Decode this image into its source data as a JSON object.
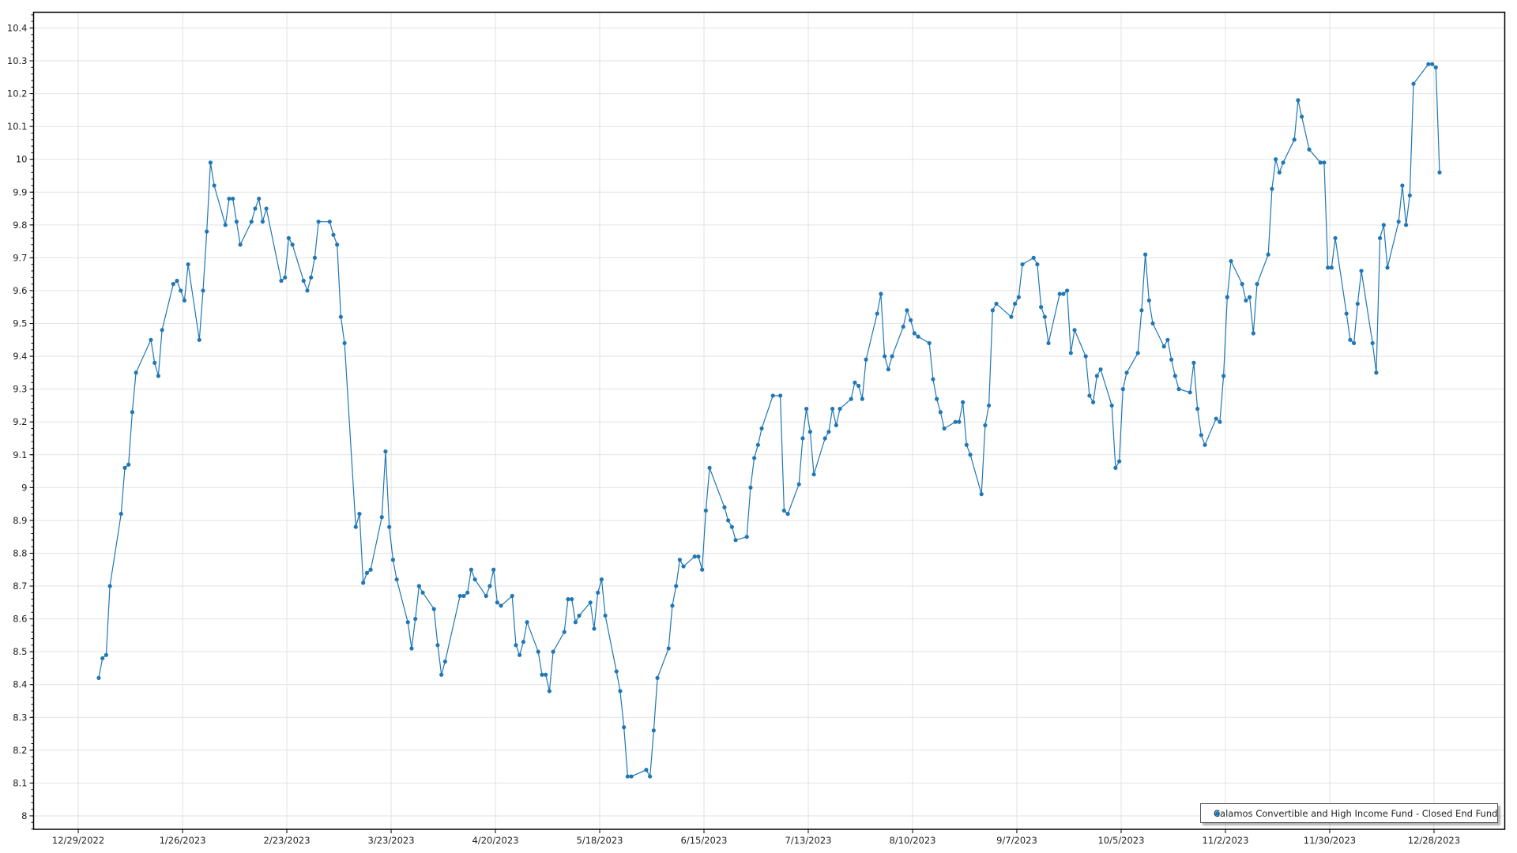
{
  "chart_data": {
    "type": "line",
    "title": "",
    "xlabel": "",
    "ylabel": "",
    "xlim": [
      "2022-12-17",
      "2024-01-16"
    ],
    "ylim": [
      7.959,
      10.448
    ],
    "grid": true,
    "legend_position": "bottom-right",
    "line_color": "#1f77b4",
    "x_ticks": [
      "12/29/2022",
      "1/26/2023",
      "2/23/2023",
      "3/23/2023",
      "4/20/2023",
      "5/18/2023",
      "6/15/2023",
      "7/13/2023",
      "8/10/2023",
      "9/7/2023",
      "10/5/2023",
      "11/2/2023",
      "11/30/2023",
      "12/28/2023"
    ],
    "y_ticks": [
      "8",
      "8.1",
      "8.2",
      "8.3",
      "8.4",
      "8.5",
      "8.6",
      "8.7",
      "8.8",
      "8.9",
      "9",
      "9.1",
      "9.2",
      "9.3",
      "9.4",
      "9.5",
      "9.6",
      "9.7",
      "9.8",
      "9.9",
      "10",
      "10.1",
      "10.2",
      "10.3",
      "10.4"
    ],
    "series": [
      {
        "name": "Calamos Convertible and High Income Fund - Closed End Fund",
        "points": [
          [
            "2023-01-03",
            8.42
          ],
          [
            "2023-01-04",
            8.48
          ],
          [
            "2023-01-05",
            8.49
          ],
          [
            "2023-01-06",
            8.7
          ],
          [
            "2023-01-09",
            8.92
          ],
          [
            "2023-01-10",
            9.06
          ],
          [
            "2023-01-11",
            9.07
          ],
          [
            "2023-01-12",
            9.23
          ],
          [
            "2023-01-13",
            9.35
          ],
          [
            "2023-01-17",
            9.45
          ],
          [
            "2023-01-18",
            9.38
          ],
          [
            "2023-01-19",
            9.34
          ],
          [
            "2023-01-20",
            9.48
          ],
          [
            "2023-01-23",
            9.62
          ],
          [
            "2023-01-24",
            9.63
          ],
          [
            "2023-01-25",
            9.6
          ],
          [
            "2023-01-26",
            9.57
          ],
          [
            "2023-01-27",
            9.68
          ],
          [
            "2023-01-30",
            9.45
          ],
          [
            "2023-01-31",
            9.6
          ],
          [
            "2023-02-01",
            9.78
          ],
          [
            "2023-02-02",
            9.99
          ],
          [
            "2023-02-03",
            9.92
          ],
          [
            "2023-02-06",
            9.8
          ],
          [
            "2023-02-07",
            9.88
          ],
          [
            "2023-02-08",
            9.88
          ],
          [
            "2023-02-09",
            9.81
          ],
          [
            "2023-02-10",
            9.74
          ],
          [
            "2023-02-13",
            9.81
          ],
          [
            "2023-02-14",
            9.85
          ],
          [
            "2023-02-15",
            9.88
          ],
          [
            "2023-02-16",
            9.81
          ],
          [
            "2023-02-17",
            9.85
          ],
          [
            "2023-02-21",
            9.63
          ],
          [
            "2023-02-22",
            9.64
          ],
          [
            "2023-02-23",
            9.76
          ],
          [
            "2023-02-24",
            9.74
          ],
          [
            "2023-02-27",
            9.63
          ],
          [
            "2023-02-28",
            9.6
          ],
          [
            "2023-03-01",
            9.64
          ],
          [
            "2023-03-02",
            9.7
          ],
          [
            "2023-03-03",
            9.81
          ],
          [
            "2023-03-06",
            9.81
          ],
          [
            "2023-03-07",
            9.77
          ],
          [
            "2023-03-08",
            9.74
          ],
          [
            "2023-03-09",
            9.52
          ],
          [
            "2023-03-10",
            9.44
          ],
          [
            "2023-03-13",
            8.88
          ],
          [
            "2023-03-14",
            8.92
          ],
          [
            "2023-03-15",
            8.71
          ],
          [
            "2023-03-16",
            8.74
          ],
          [
            "2023-03-17",
            8.75
          ],
          [
            "2023-03-20",
            8.91
          ],
          [
            "2023-03-21",
            9.11
          ],
          [
            "2023-03-22",
            8.88
          ],
          [
            "2023-03-23",
            8.78
          ],
          [
            "2023-03-24",
            8.72
          ],
          [
            "2023-03-27",
            8.59
          ],
          [
            "2023-03-28",
            8.51
          ],
          [
            "2023-03-29",
            8.6
          ],
          [
            "2023-03-30",
            8.7
          ],
          [
            "2023-03-31",
            8.68
          ],
          [
            "2023-04-03",
            8.63
          ],
          [
            "2023-04-04",
            8.52
          ],
          [
            "2023-04-05",
            8.43
          ],
          [
            "2023-04-06",
            8.47
          ],
          [
            "2023-04-10",
            8.67
          ],
          [
            "2023-04-11",
            8.67
          ],
          [
            "2023-04-12",
            8.68
          ],
          [
            "2023-04-13",
            8.75
          ],
          [
            "2023-04-14",
            8.72
          ],
          [
            "2023-04-17",
            8.67
          ],
          [
            "2023-04-18",
            8.7
          ],
          [
            "2023-04-19",
            8.75
          ],
          [
            "2023-04-20",
            8.65
          ],
          [
            "2023-04-21",
            8.64
          ],
          [
            "2023-04-24",
            8.67
          ],
          [
            "2023-04-25",
            8.52
          ],
          [
            "2023-04-26",
            8.49
          ],
          [
            "2023-04-27",
            8.53
          ],
          [
            "2023-04-28",
            8.59
          ],
          [
            "2023-05-01",
            8.5
          ],
          [
            "2023-05-02",
            8.43
          ],
          [
            "2023-05-03",
            8.43
          ],
          [
            "2023-05-04",
            8.38
          ],
          [
            "2023-05-05",
            8.5
          ],
          [
            "2023-05-08",
            8.56
          ],
          [
            "2023-05-09",
            8.66
          ],
          [
            "2023-05-10",
            8.66
          ],
          [
            "2023-05-11",
            8.59
          ],
          [
            "2023-05-12",
            8.61
          ],
          [
            "2023-05-15",
            8.65
          ],
          [
            "2023-05-16",
            8.57
          ],
          [
            "2023-05-17",
            8.68
          ],
          [
            "2023-05-18",
            8.72
          ],
          [
            "2023-05-19",
            8.61
          ],
          [
            "2023-05-22",
            8.44
          ],
          [
            "2023-05-23",
            8.38
          ],
          [
            "2023-05-24",
            8.27
          ],
          [
            "2023-05-25",
            8.12
          ],
          [
            "2023-05-26",
            8.12
          ],
          [
            "2023-05-30",
            8.14
          ],
          [
            "2023-05-31",
            8.12
          ],
          [
            "2023-06-01",
            8.26
          ],
          [
            "2023-06-02",
            8.42
          ],
          [
            "2023-06-05",
            8.51
          ],
          [
            "2023-06-06",
            8.64
          ],
          [
            "2023-06-07",
            8.7
          ],
          [
            "2023-06-08",
            8.78
          ],
          [
            "2023-06-09",
            8.76
          ],
          [
            "2023-06-12",
            8.79
          ],
          [
            "2023-06-13",
            8.79
          ],
          [
            "2023-06-14",
            8.75
          ],
          [
            "2023-06-15",
            8.93
          ],
          [
            "2023-06-16",
            9.06
          ],
          [
            "2023-06-20",
            8.94
          ],
          [
            "2023-06-21",
            8.9
          ],
          [
            "2023-06-22",
            8.88
          ],
          [
            "2023-06-23",
            8.84
          ],
          [
            "2023-06-26",
            8.85
          ],
          [
            "2023-06-27",
            9.0
          ],
          [
            "2023-06-28",
            9.09
          ],
          [
            "2023-06-29",
            9.13
          ],
          [
            "2023-06-30",
            9.18
          ],
          [
            "2023-07-03",
            9.28
          ],
          [
            "2023-07-05",
            9.28
          ],
          [
            "2023-07-06",
            8.93
          ],
          [
            "2023-07-07",
            8.92
          ],
          [
            "2023-07-10",
            9.01
          ],
          [
            "2023-07-11",
            9.15
          ],
          [
            "2023-07-12",
            9.24
          ],
          [
            "2023-07-13",
            9.17
          ],
          [
            "2023-07-14",
            9.04
          ],
          [
            "2023-07-17",
            9.15
          ],
          [
            "2023-07-18",
            9.17
          ],
          [
            "2023-07-19",
            9.24
          ],
          [
            "2023-07-20",
            9.19
          ],
          [
            "2023-07-21",
            9.24
          ],
          [
            "2023-07-24",
            9.27
          ],
          [
            "2023-07-25",
            9.32
          ],
          [
            "2023-07-26",
            9.31
          ],
          [
            "2023-07-27",
            9.27
          ],
          [
            "2023-07-28",
            9.39
          ],
          [
            "2023-07-31",
            9.53
          ],
          [
            "2023-08-01",
            9.59
          ],
          [
            "2023-08-02",
            9.4
          ],
          [
            "2023-08-03",
            9.36
          ],
          [
            "2023-08-04",
            9.4
          ],
          [
            "2023-08-07",
            9.49
          ],
          [
            "2023-08-08",
            9.54
          ],
          [
            "2023-08-09",
            9.51
          ],
          [
            "2023-08-10",
            9.47
          ],
          [
            "2023-08-11",
            9.46
          ],
          [
            "2023-08-14",
            9.44
          ],
          [
            "2023-08-15",
            9.33
          ],
          [
            "2023-08-16",
            9.27
          ],
          [
            "2023-08-17",
            9.23
          ],
          [
            "2023-08-18",
            9.18
          ],
          [
            "2023-08-21",
            9.2
          ],
          [
            "2023-08-22",
            9.2
          ],
          [
            "2023-08-23",
            9.26
          ],
          [
            "2023-08-24",
            9.13
          ],
          [
            "2023-08-25",
            9.1
          ],
          [
            "2023-08-28",
            8.98
          ],
          [
            "2023-08-29",
            9.19
          ],
          [
            "2023-08-30",
            9.25
          ],
          [
            "2023-08-31",
            9.54
          ],
          [
            "2023-09-01",
            9.56
          ],
          [
            "2023-09-05",
            9.52
          ],
          [
            "2023-09-06",
            9.56
          ],
          [
            "2023-09-07",
            9.58
          ],
          [
            "2023-09-08",
            9.68
          ],
          [
            "2023-09-11",
            9.7
          ],
          [
            "2023-09-12",
            9.68
          ],
          [
            "2023-09-13",
            9.55
          ],
          [
            "2023-09-14",
            9.52
          ],
          [
            "2023-09-15",
            9.44
          ],
          [
            "2023-09-18",
            9.59
          ],
          [
            "2023-09-19",
            9.59
          ],
          [
            "2023-09-20",
            9.6
          ],
          [
            "2023-09-21",
            9.41
          ],
          [
            "2023-09-22",
            9.48
          ],
          [
            "2023-09-25",
            9.4
          ],
          [
            "2023-09-26",
            9.28
          ],
          [
            "2023-09-27",
            9.26
          ],
          [
            "2023-09-28",
            9.34
          ],
          [
            "2023-09-29",
            9.36
          ],
          [
            "2023-10-02",
            9.25
          ],
          [
            "2023-10-03",
            9.06
          ],
          [
            "2023-10-04",
            9.08
          ],
          [
            "2023-10-05",
            9.3
          ],
          [
            "2023-10-06",
            9.35
          ],
          [
            "2023-10-09",
            9.41
          ],
          [
            "2023-10-10",
            9.54
          ],
          [
            "2023-10-11",
            9.71
          ],
          [
            "2023-10-12",
            9.57
          ],
          [
            "2023-10-13",
            9.5
          ],
          [
            "2023-10-16",
            9.43
          ],
          [
            "2023-10-17",
            9.45
          ],
          [
            "2023-10-18",
            9.39
          ],
          [
            "2023-10-19",
            9.34
          ],
          [
            "2023-10-20",
            9.3
          ],
          [
            "2023-10-23",
            9.29
          ],
          [
            "2023-10-24",
            9.38
          ],
          [
            "2023-10-25",
            9.24
          ],
          [
            "2023-10-26",
            9.16
          ],
          [
            "2023-10-27",
            9.13
          ],
          [
            "2023-10-30",
            9.21
          ],
          [
            "2023-10-31",
            9.2
          ],
          [
            "2023-11-01",
            9.34
          ],
          [
            "2023-11-02",
            9.58
          ],
          [
            "2023-11-03",
            9.69
          ],
          [
            "2023-11-06",
            9.62
          ],
          [
            "2023-11-07",
            9.57
          ],
          [
            "2023-11-08",
            9.58
          ],
          [
            "2023-11-09",
            9.47
          ],
          [
            "2023-11-10",
            9.62
          ],
          [
            "2023-11-13",
            9.71
          ],
          [
            "2023-11-14",
            9.91
          ],
          [
            "2023-11-15",
            10.0
          ],
          [
            "2023-11-16",
            9.96
          ],
          [
            "2023-11-17",
            9.99
          ],
          [
            "2023-11-20",
            10.06
          ],
          [
            "2023-11-21",
            10.18
          ],
          [
            "2023-11-22",
            10.13
          ],
          [
            "2023-11-24",
            10.03
          ],
          [
            "2023-11-27",
            9.99
          ],
          [
            "2023-11-28",
            9.99
          ],
          [
            "2023-11-29",
            9.67
          ],
          [
            "2023-11-30",
            9.67
          ],
          [
            "2023-12-01",
            9.76
          ],
          [
            "2023-12-04",
            9.53
          ],
          [
            "2023-12-05",
            9.45
          ],
          [
            "2023-12-06",
            9.44
          ],
          [
            "2023-12-07",
            9.56
          ],
          [
            "2023-12-08",
            9.66
          ],
          [
            "2023-12-11",
            9.44
          ],
          [
            "2023-12-12",
            9.35
          ],
          [
            "2023-12-13",
            9.76
          ],
          [
            "2023-12-14",
            9.8
          ],
          [
            "2023-12-15",
            9.67
          ],
          [
            "2023-12-18",
            9.81
          ],
          [
            "2023-12-19",
            9.92
          ],
          [
            "2023-12-20",
            9.8
          ],
          [
            "2023-12-21",
            9.89
          ],
          [
            "2023-12-22",
            10.23
          ],
          [
            "2023-12-26",
            10.29
          ],
          [
            "2023-12-27",
            10.29
          ],
          [
            "2023-12-28",
            10.28
          ],
          [
            "2023-12-29",
            9.96
          ]
        ]
      }
    ]
  }
}
